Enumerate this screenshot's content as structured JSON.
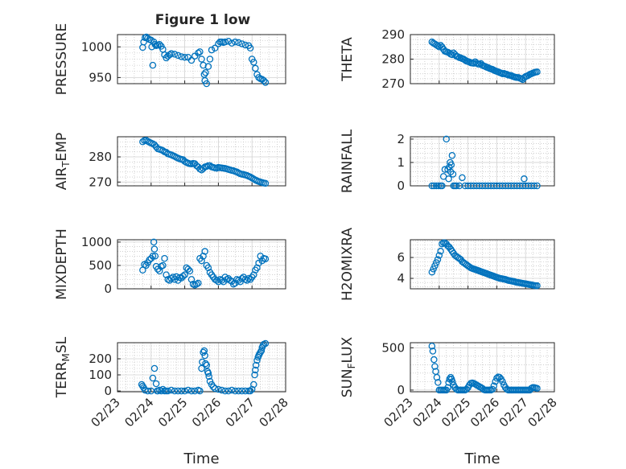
{
  "figure": {
    "title": "Figure 1 low"
  },
  "chart_data": [
    {
      "type": "scatter",
      "ylabel": "PRESSURE",
      "xlabel": "",
      "title": "Figure 1 low",
      "xlim": [
        "02/23",
        "02/28"
      ],
      "ylim": [
        940,
        1020
      ],
      "yticks": [
        950,
        1000
      ],
      "xticks": [],
      "grid": true,
      "marker_color": "#0072BD",
      "x": [
        23.75,
        23.78,
        23.82,
        23.86,
        23.9,
        23.95,
        24.0,
        24.02,
        24.05,
        24.08,
        24.12,
        24.15,
        24.2,
        24.25,
        24.3,
        24.35,
        24.4,
        24.45,
        24.5,
        24.55,
        24.6,
        24.7,
        24.8,
        24.9,
        25.0,
        25.1,
        25.2,
        25.3,
        25.4,
        25.45,
        25.5,
        25.55,
        25.58,
        25.6,
        25.62,
        25.65,
        25.7,
        25.75,
        25.8,
        25.9,
        26.0,
        26.05,
        26.1,
        26.15,
        26.2,
        26.3,
        26.4,
        26.5,
        26.6,
        26.7,
        26.8,
        26.9,
        26.95,
        27.0,
        27.05,
        27.1,
        27.15,
        27.2,
        27.25,
        27.3,
        27.35,
        27.4
      ],
      "y": [
        999,
        1008,
        1015,
        1016,
        1014,
        1012,
        1011,
        1000,
        970,
        1008,
        1004,
        1002,
        1003,
        1004,
        1001,
        996,
        987,
        982,
        985,
        987,
        989,
        988,
        986,
        984,
        983,
        983,
        978,
        985,
        990,
        992,
        980,
        970,
        955,
        945,
        958,
        940,
        968,
        980,
        995,
        998,
        1005,
        1008,
        1008,
        1007,
        1008,
        1009,
        1006,
        1008,
        1007,
        1005,
        1003,
        1002,
        998,
        980,
        975,
        965,
        955,
        950,
        948,
        947,
        945,
        942
      ]
    },
    {
      "type": "scatter",
      "ylabel": "THETA",
      "xlabel": "",
      "xlim": [
        "02/23",
        "02/28"
      ],
      "ylim": [
        270,
        290
      ],
      "yticks": [
        270,
        280,
        290
      ],
      "xticks": [],
      "grid": true,
      "marker_color": "#0072BD",
      "x": [
        23.75,
        23.8,
        23.85,
        23.9,
        23.95,
        24.0,
        24.05,
        24.1,
        24.15,
        24.2,
        24.25,
        24.3,
        24.35,
        24.4,
        24.45,
        24.5,
        24.55,
        24.6,
        24.65,
        24.7,
        24.75,
        24.8,
        24.85,
        24.9,
        24.95,
        25.0,
        25.05,
        25.1,
        25.15,
        25.2,
        25.25,
        25.3,
        25.35,
        25.4,
        25.45,
        25.5,
        25.55,
        25.6,
        25.65,
        25.7,
        25.75,
        25.8,
        25.85,
        25.9,
        25.95,
        26.0,
        26.05,
        26.1,
        26.15,
        26.2,
        26.25,
        26.3,
        26.35,
        26.4,
        26.45,
        26.5,
        26.55,
        26.6,
        26.65,
        26.7,
        26.75,
        26.8,
        26.85,
        26.9,
        26.95,
        27.0,
        27.05,
        27.1,
        27.15,
        27.2,
        27.25,
        27.3,
        27.35,
        27.4
      ],
      "y": [
        287.0,
        286.5,
        286.2,
        285.8,
        285.4,
        285.0,
        285.6,
        284.9,
        284.0,
        283.2,
        283.0,
        282.8,
        282.5,
        282.0,
        281.8,
        282.5,
        281.9,
        281.2,
        281.0,
        280.6,
        280.5,
        280.2,
        280.0,
        279.6,
        279.2,
        279.0,
        278.8,
        278.5,
        278.4,
        278.3,
        278.9,
        278.4,
        278.0,
        277.9,
        278.2,
        277.5,
        277.2,
        277.0,
        276.7,
        276.5,
        276.2,
        276.0,
        275.8,
        275.5,
        275.2,
        275.0,
        274.8,
        274.5,
        274.3,
        274.0,
        274.2,
        273.9,
        273.8,
        273.5,
        273.4,
        273.3,
        273.0,
        272.8,
        272.6,
        272.5,
        272.5,
        272.2,
        272.0,
        271.7,
        272.4,
        272.9,
        273.1,
        273.4,
        273.8,
        274.0,
        274.3,
        274.5,
        274.7,
        274.8
      ]
    },
    {
      "type": "scatter",
      "ylabel": "AIR_TEMP",
      "xlabel": "",
      "xlim": [
        "02/23",
        "02/28"
      ],
      "ylim": [
        268.5,
        288
      ],
      "yticks": [
        270,
        280
      ],
      "xticks": [],
      "grid": true,
      "marker_color": "#0072BD",
      "x": [
        23.75,
        23.8,
        23.85,
        23.9,
        23.95,
        24.0,
        24.05,
        24.1,
        24.15,
        24.2,
        24.25,
        24.3,
        24.35,
        24.4,
        24.45,
        24.5,
        24.55,
        24.6,
        24.65,
        24.7,
        24.75,
        24.8,
        24.85,
        24.9,
        24.95,
        25.0,
        25.05,
        25.1,
        25.15,
        25.2,
        25.25,
        25.3,
        25.35,
        25.4,
        25.45,
        25.5,
        25.55,
        25.6,
        25.65,
        25.7,
        25.75,
        25.8,
        25.85,
        25.9,
        25.95,
        26.0,
        26.05,
        26.1,
        26.15,
        26.2,
        26.25,
        26.3,
        26.35,
        26.4,
        26.45,
        26.5,
        26.55,
        26.6,
        26.65,
        26.7,
        26.75,
        26.8,
        26.85,
        26.9,
        26.95,
        27.0,
        27.05,
        27.1,
        27.15,
        27.2,
        27.25,
        27.3,
        27.35,
        27.4
      ],
      "y": [
        286.0,
        286.5,
        286.6,
        286.2,
        285.8,
        285.5,
        285.2,
        284.8,
        284.0,
        283.2,
        283.0,
        282.8,
        282.5,
        282.0,
        281.8,
        281.2,
        281.0,
        280.8,
        280.5,
        280.2,
        279.8,
        279.5,
        279.2,
        279.0,
        278.9,
        278.2,
        277.8,
        277.5,
        277.3,
        277.2,
        277.4,
        277.3,
        276.5,
        276.0,
        275.2,
        274.8,
        275.4,
        276.0,
        276.2,
        276.5,
        276.5,
        276.0,
        275.8,
        275.6,
        275.5,
        275.8,
        275.7,
        275.6,
        275.5,
        275.4,
        275.2,
        275.0,
        274.8,
        274.6,
        274.5,
        274.2,
        274.0,
        273.6,
        273.3,
        273.1,
        273.0,
        272.8,
        272.6,
        272.3,
        272.0,
        271.6,
        271.2,
        270.8,
        270.5,
        270.2,
        270.0,
        269.8,
        269.6,
        269.5
      ]
    },
    {
      "type": "scatter",
      "ylabel": "RAINFALL",
      "xlabel": "",
      "xlim": [
        "02/23",
        "02/28"
      ],
      "ylim": [
        0,
        2.1
      ],
      "yticks": [
        0,
        1,
        2
      ],
      "xticks": [],
      "grid": true,
      "marker_color": "#0072BD",
      "x": [
        23.75,
        23.82,
        23.9,
        23.98,
        24.05,
        24.1,
        24.15,
        24.2,
        24.25,
        24.3,
        24.33,
        24.35,
        24.38,
        24.4,
        24.42,
        24.45,
        24.48,
        24.5,
        24.55,
        24.6,
        24.7,
        24.8,
        24.9,
        25.0,
        25.1,
        25.2,
        25.3,
        25.4,
        25.5,
        25.6,
        25.7,
        25.8,
        25.9,
        26.0,
        26.1,
        26.2,
        26.3,
        26.4,
        26.5,
        26.6,
        26.7,
        26.8,
        26.9,
        26.95,
        27.0,
        27.1,
        27.2,
        27.3,
        27.4
      ],
      "y": [
        0,
        0,
        0,
        0,
        0,
        0,
        0.4,
        0.7,
        2.0,
        0.7,
        0.3,
        0.8,
        1.0,
        0.6,
        0.9,
        1.3,
        0.5,
        0,
        0,
        0,
        0,
        0.35,
        0,
        0,
        0,
        0,
        0,
        0,
        0,
        0,
        0,
        0,
        0,
        0,
        0,
        0,
        0,
        0,
        0,
        0,
        0,
        0,
        0,
        0.3,
        0,
        0,
        0,
        0,
        0
      ]
    },
    {
      "type": "scatter",
      "ylabel": "MIXDEPTH",
      "xlabel": "",
      "xlim": [
        "02/23",
        "02/28"
      ],
      "ylim": [
        0,
        1050
      ],
      "yticks": [
        0,
        500,
        1000
      ],
      "xticks": [],
      "grid": true,
      "marker_color": "#0072BD",
      "x": [
        23.75,
        23.8,
        23.85,
        23.9,
        23.95,
        24.0,
        24.05,
        24.08,
        24.1,
        24.12,
        24.15,
        24.2,
        24.25,
        24.3,
        24.35,
        24.4,
        24.45,
        24.5,
        24.55,
        24.6,
        24.65,
        24.7,
        24.75,
        24.8,
        24.85,
        24.9,
        24.95,
        25.0,
        25.05,
        25.1,
        25.15,
        25.2,
        25.25,
        25.3,
        25.35,
        25.4,
        25.45,
        25.5,
        25.55,
        25.6,
        25.65,
        25.7,
        25.75,
        25.8,
        25.85,
        25.9,
        25.95,
        26.0,
        26.05,
        26.1,
        26.15,
        26.2,
        26.25,
        26.3,
        26.35,
        26.4,
        26.45,
        26.5,
        26.55,
        26.6,
        26.65,
        26.7,
        26.75,
        26.8,
        26.85,
        26.9,
        26.95,
        27.0,
        27.05,
        27.1,
        27.15,
        27.2,
        27.25,
        27.3,
        27.35,
        27.4
      ],
      "y": [
        400,
        520,
        500,
        560,
        620,
        650,
        700,
        1000,
        850,
        700,
        480,
        420,
        380,
        480,
        500,
        650,
        300,
        200,
        180,
        220,
        250,
        200,
        260,
        180,
        240,
        230,
        270,
        300,
        450,
        420,
        380,
        200,
        100,
        80,
        100,
        120,
        650,
        600,
        700,
        800,
        500,
        450,
        350,
        300,
        250,
        200,
        180,
        150,
        200,
        180,
        150,
        250,
        200,
        220,
        180,
        160,
        100,
        120,
        200,
        180,
        150,
        220,
        250,
        200,
        180,
        220,
        200,
        250,
        300,
        400,
        450,
        550,
        700,
        600,
        650,
        640
      ]
    },
    {
      "type": "scatter",
      "ylabel": "H2OMIXRA",
      "xlabel": "",
      "xlim": [
        "02/23",
        "02/28"
      ],
      "ylim": [
        3,
        7.7
      ],
      "yticks": [
        4,
        6
      ],
      "xticks": [],
      "grid": true,
      "marker_color": "#0072BD",
      "x": [
        23.75,
        23.8,
        23.85,
        23.9,
        23.95,
        24.0,
        24.05,
        24.1,
        24.15,
        24.2,
        24.25,
        24.3,
        24.35,
        24.4,
        24.45,
        24.5,
        24.55,
        24.6,
        24.65,
        24.7,
        24.75,
        24.8,
        24.85,
        24.9,
        24.95,
        25.0,
        25.05,
        25.1,
        25.15,
        25.2,
        25.25,
        25.3,
        25.35,
        25.4,
        25.45,
        25.5,
        25.55,
        25.6,
        25.65,
        25.7,
        25.75,
        25.8,
        25.85,
        25.9,
        25.95,
        26.0,
        26.05,
        26.1,
        26.15,
        26.2,
        26.25,
        26.3,
        26.35,
        26.4,
        26.45,
        26.5,
        26.55,
        26.6,
        26.65,
        26.7,
        26.75,
        26.8,
        26.85,
        26.9,
        26.95,
        27.0,
        27.05,
        27.1,
        27.15,
        27.2,
        27.25,
        27.3,
        27.35,
        27.4
      ],
      "y": [
        4.6,
        4.9,
        5.2,
        5.5,
        5.8,
        6.2,
        6.6,
        7.3,
        7.4,
        7.4,
        7.3,
        7.1,
        7.0,
        6.8,
        6.6,
        6.4,
        6.2,
        6.1,
        6.0,
        5.9,
        5.8,
        5.6,
        5.5,
        5.4,
        5.3,
        5.2,
        5.1,
        5.0,
        4.95,
        4.9,
        4.85,
        4.8,
        4.75,
        4.7,
        4.65,
        4.6,
        4.55,
        4.5,
        4.45,
        4.4,
        4.35,
        4.3,
        4.25,
        4.2,
        4.15,
        4.1,
        4.05,
        4.0,
        3.98,
        3.95,
        3.92,
        3.9,
        3.85,
        3.8,
        3.78,
        3.75,
        3.72,
        3.7,
        3.65,
        3.62,
        3.6,
        3.58,
        3.55,
        3.52,
        3.5,
        3.48,
        3.45,
        3.42,
        3.4,
        3.38,
        3.35,
        3.32,
        3.3,
        3.3
      ]
    },
    {
      "type": "scatter",
      "ylabel": "TERR_MSL",
      "xlabel": "Time",
      "xlim": [
        "02/23",
        "02/28"
      ],
      "ylim": [
        -5,
        300
      ],
      "yticks": [
        0,
        100,
        200
      ],
      "xticks": [
        "02/23",
        "02/24",
        "02/25",
        "02/26",
        "02/27",
        "02/28"
      ],
      "grid": true,
      "marker_color": "#0072BD",
      "x": [
        23.72,
        23.75,
        23.78,
        23.82,
        23.9,
        24.0,
        24.05,
        24.1,
        24.15,
        24.18,
        24.2,
        24.25,
        24.3,
        24.35,
        24.4,
        24.45,
        24.5,
        24.6,
        24.7,
        24.8,
        24.9,
        25.0,
        25.1,
        25.2,
        25.3,
        25.4,
        25.45,
        25.5,
        25.52,
        25.55,
        25.58,
        25.6,
        25.62,
        25.65,
        25.68,
        25.7,
        25.72,
        25.75,
        25.8,
        25.85,
        25.9,
        26.0,
        26.1,
        26.2,
        26.3,
        26.4,
        26.5,
        26.6,
        26.7,
        26.8,
        26.9,
        26.95,
        27.0,
        27.05,
        27.08,
        27.1,
        27.12,
        27.15,
        27.18,
        27.2,
        27.22,
        27.25,
        27.28,
        27.3,
        27.32,
        27.35,
        27.4
      ],
      "y": [
        40,
        30,
        20,
        5,
        0,
        0,
        80,
        140,
        45,
        0,
        0,
        5,
        0,
        10,
        0,
        0,
        0,
        5,
        0,
        0,
        0,
        0,
        5,
        0,
        0,
        5,
        0,
        140,
        180,
        240,
        250,
        220,
        170,
        160,
        120,
        110,
        90,
        60,
        40,
        25,
        15,
        10,
        5,
        0,
        0,
        5,
        0,
        0,
        0,
        0,
        0,
        0,
        10,
        40,
        100,
        130,
        160,
        190,
        210,
        220,
        230,
        240,
        250,
        270,
        280,
        290,
        295
      ]
    },
    {
      "type": "scatter",
      "ylabel": "SUN_FLUX",
      "xlabel": "Time",
      "xlim": [
        "02/23",
        "02/28"
      ],
      "ylim": [
        -20,
        560
      ],
      "yticks": [
        0,
        500
      ],
      "xticks": [
        "02/23",
        "02/24",
        "02/25",
        "02/26",
        "02/27",
        "02/28"
      ],
      "grid": true,
      "marker_color": "#0072BD",
      "x": [
        23.75,
        23.78,
        23.82,
        23.85,
        23.88,
        23.92,
        23.96,
        24.0,
        24.05,
        24.1,
        24.15,
        24.2,
        24.25,
        24.3,
        24.33,
        24.36,
        24.4,
        24.43,
        24.46,
        24.5,
        24.55,
        24.6,
        24.65,
        24.7,
        24.75,
        24.8,
        24.85,
        24.9,
        24.95,
        25.0,
        25.05,
        25.1,
        25.15,
        25.2,
        25.25,
        25.3,
        25.35,
        25.4,
        25.45,
        25.5,
        25.55,
        25.6,
        25.65,
        25.7,
        25.75,
        25.8,
        25.85,
        25.9,
        25.95,
        26.0,
        26.05,
        26.1,
        26.15,
        26.2,
        26.25,
        26.3,
        26.35,
        26.4,
        26.45,
        26.5,
        26.55,
        26.6,
        26.65,
        26.7,
        26.75,
        26.8,
        26.85,
        26.9,
        26.95,
        27.0,
        27.05,
        27.1,
        27.15,
        27.2,
        27.25,
        27.3,
        27.35,
        27.4
      ],
      "y": [
        520,
        460,
        360,
        280,
        220,
        150,
        90,
        0,
        0,
        0,
        0,
        0,
        0,
        30,
        90,
        130,
        150,
        130,
        100,
        60,
        30,
        10,
        0,
        0,
        0,
        0,
        0,
        0,
        10,
        30,
        60,
        80,
        85,
        80,
        70,
        60,
        50,
        40,
        30,
        20,
        5,
        0,
        0,
        0,
        0,
        0,
        10,
        50,
        100,
        140,
        155,
        150,
        130,
        100,
        60,
        30,
        10,
        0,
        0,
        0,
        0,
        0,
        0,
        0,
        0,
        0,
        0,
        0,
        0,
        0,
        0,
        0,
        0,
        20,
        30,
        30,
        25,
        20
      ]
    }
  ]
}
